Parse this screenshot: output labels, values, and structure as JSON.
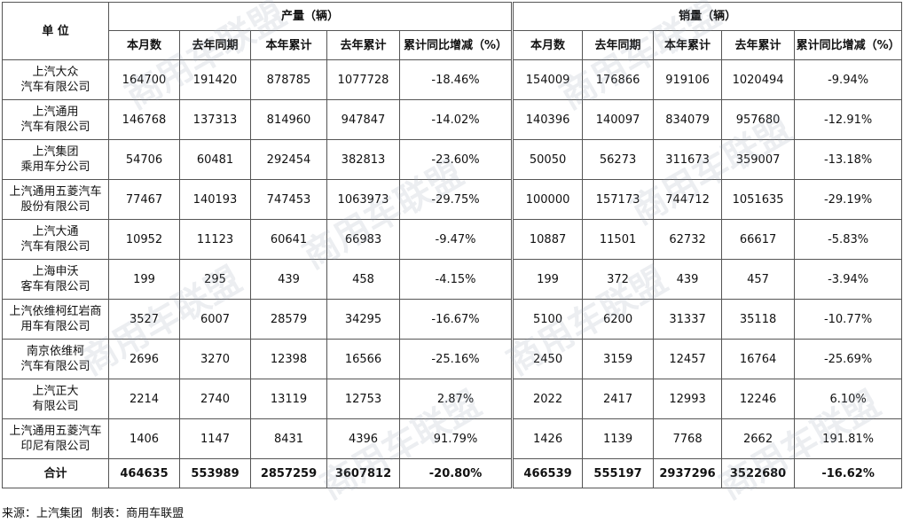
{
  "header": {
    "unit_label": "单 位",
    "production_group": "产量（辆）",
    "sales_group": "销量（辆）",
    "subcolumns": [
      "本月数",
      "去年同期",
      "本年累计",
      "去年累计",
      "累计同比增减（%）"
    ]
  },
  "rows": [
    {
      "unit": [
        "上汽大众",
        "汽车有限公司"
      ],
      "prod": [
        "164700",
        "191420",
        "878785",
        "1077728",
        "-18.46%"
      ],
      "sales": [
        "154009",
        "176866",
        "919106",
        "1020494",
        "-9.94%"
      ]
    },
    {
      "unit": [
        "上汽通用",
        "汽车有限公司"
      ],
      "prod": [
        "146768",
        "137313",
        "814960",
        "947847",
        "-14.02%"
      ],
      "sales": [
        "140396",
        "140097",
        "834079",
        "957680",
        "-12.91%"
      ]
    },
    {
      "unit": [
        "上汽集团",
        "乘用车分公司"
      ],
      "prod": [
        "54706",
        "60481",
        "292454",
        "382813",
        "-23.60%"
      ],
      "sales": [
        "50050",
        "56273",
        "311673",
        "359007",
        "-13.18%"
      ]
    },
    {
      "unit": [
        "上汽通用五菱汽车",
        "股份有限公司"
      ],
      "prod": [
        "77467",
        "140193",
        "747453",
        "1063973",
        "-29.75%"
      ],
      "sales": [
        "100000",
        "157173",
        "744712",
        "1051635",
        "-29.19%"
      ]
    },
    {
      "unit": [
        "上汽大通",
        "汽车有限公司"
      ],
      "prod": [
        "10952",
        "11123",
        "60641",
        "66983",
        "-9.47%"
      ],
      "sales": [
        "10887",
        "11501",
        "62732",
        "66617",
        "-5.83%"
      ]
    },
    {
      "unit": [
        "上海申沃",
        "客车有限公司"
      ],
      "prod": [
        "199",
        "295",
        "439",
        "458",
        "-4.15%"
      ],
      "sales": [
        "199",
        "372",
        "439",
        "457",
        "-3.94%"
      ]
    },
    {
      "unit": [
        "上汽依维柯红岩商",
        "用车有限公司"
      ],
      "prod": [
        "3527",
        "6007",
        "28579",
        "34295",
        "-16.67%"
      ],
      "sales": [
        "5100",
        "6200",
        "31337",
        "35118",
        "-10.77%"
      ]
    },
    {
      "unit": [
        "南京依维柯",
        "汽车有限公司"
      ],
      "prod": [
        "2696",
        "3270",
        "12398",
        "16566",
        "-25.16%"
      ],
      "sales": [
        "2450",
        "3159",
        "12457",
        "16764",
        "-25.69%"
      ]
    },
    {
      "unit": [
        "上汽正大",
        "有限公司"
      ],
      "prod": [
        "2214",
        "2740",
        "13119",
        "12753",
        "2.87%"
      ],
      "sales": [
        "2022",
        "2417",
        "12993",
        "12246",
        "6.10%"
      ]
    },
    {
      "unit": [
        "上汽通用五菱汽车",
        "印尼有限公司"
      ],
      "prod": [
        "1406",
        "1147",
        "8431",
        "4396",
        "91.79%"
      ],
      "sales": [
        "1426",
        "1139",
        "7768",
        "2662",
        "191.81%"
      ]
    }
  ],
  "total": {
    "label": "合计",
    "prod": [
      "464635",
      "553989",
      "2857259",
      "3607812",
      "-20.80%"
    ],
    "sales": [
      "466539",
      "555197",
      "2937296",
      "3522680",
      "-16.62%"
    ]
  },
  "footer": {
    "source": "来源：上汽集团",
    "maker": "制表：商用车联盟"
  },
  "watermark": "商用车联盟"
}
